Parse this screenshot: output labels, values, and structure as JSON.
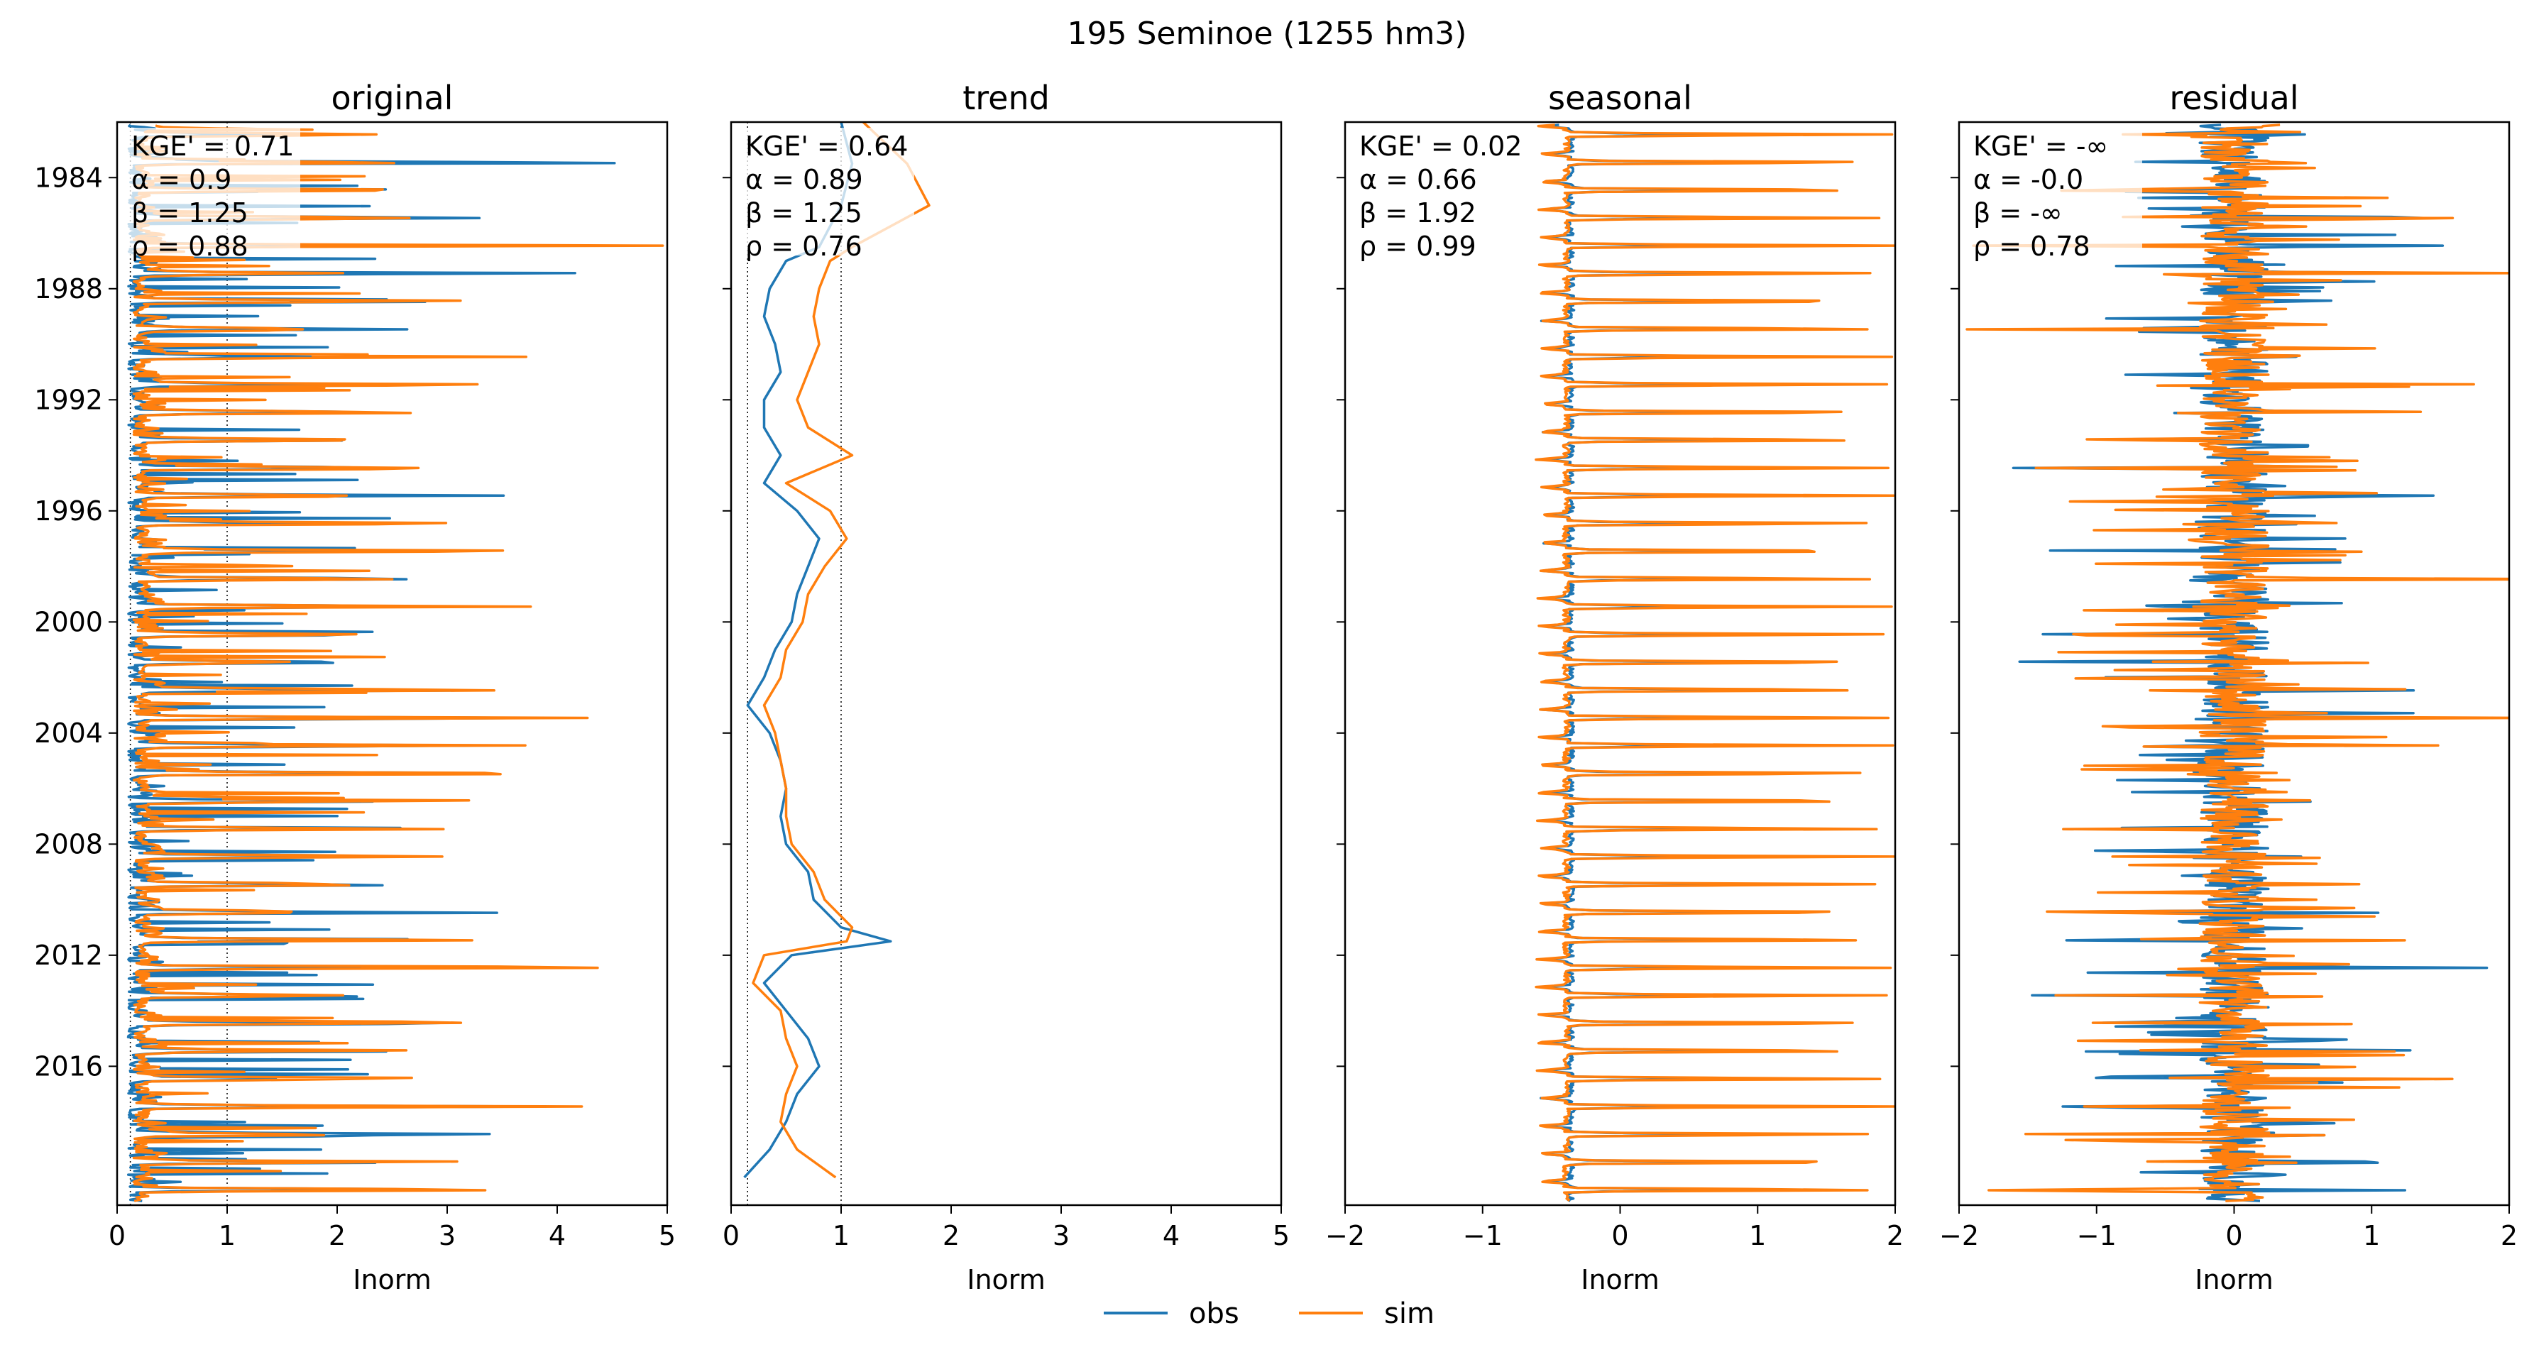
{
  "figure": {
    "suptitle": "195  Seminoe (1255 hm3)",
    "legend": {
      "obs_label": "obs",
      "sim_label": "sim",
      "placement": "bottom-center"
    },
    "colors": {
      "obs": "#1f77b4",
      "sim": "#ff7f0e",
      "axis": "#000000",
      "background": "#ffffff"
    }
  },
  "chart_data": [
    {
      "type": "line",
      "title": "original",
      "xlabel": "Inorm",
      "ylabel": "",
      "orientation": "vertical-time",
      "xlim": [
        0,
        5
      ],
      "xticks": [
        "0",
        "1",
        "2",
        "3",
        "4",
        "5"
      ],
      "ylim": [
        1982,
        2021
      ],
      "yticks": [
        "1984",
        "1988",
        "1992",
        "1996",
        "2000",
        "2004",
        "2008",
        "2012",
        "2016"
      ],
      "reference_lines_x": [
        0.12,
        1.0
      ],
      "metrics": [
        "KGE' = 0.71",
        "α = 0.9",
        "β = 1.25",
        "ρ = 0.88"
      ],
      "series": [
        {
          "name": "obs",
          "pattern": "annual-spikes",
          "base": 0.1,
          "amplitude": 1.8,
          "noise": 0.3
        },
        {
          "name": "sim",
          "pattern": "annual-spikes",
          "base": 0.15,
          "amplitude": 2.1,
          "noise": 0.3
        }
      ]
    },
    {
      "type": "line",
      "title": "trend",
      "xlabel": "Inorm",
      "ylabel": "",
      "orientation": "vertical-time",
      "xlim": [
        0,
        5
      ],
      "xticks": [
        "0",
        "1",
        "2",
        "3",
        "4",
        "5"
      ],
      "ylim": [
        1982,
        2021
      ],
      "yticks": [
        "1984",
        "1988",
        "1992",
        "1996",
        "2000",
        "2004",
        "2008",
        "2012",
        "2016"
      ],
      "reference_lines_x": [
        0.15,
        1.0
      ],
      "metrics": [
        "KGE' = 0.64",
        "α = 0.89",
        "β = 1.25",
        "ρ = 0.76"
      ],
      "series": [
        {
          "name": "obs",
          "y": [
            1982.0,
            1983.5,
            1985.0,
            1986.5,
            1987.0,
            1988.0,
            1989.0,
            1990.0,
            1991.0,
            1992.0,
            1993.0,
            1994.0,
            1995.0,
            1996.0,
            1997.0,
            1998.0,
            1999.0,
            2000.0,
            2001.0,
            2002.0,
            2003.0,
            2004.0,
            2005.0,
            2006.0,
            2007.0,
            2008.0,
            2009.0,
            2010.0,
            2011.0,
            2011.5,
            2012.0,
            2013.0,
            2014.0,
            2015.0,
            2016.0,
            2017.0,
            2018.0,
            2019.0,
            2020.0
          ],
          "x": [
            1.0,
            1.1,
            1.0,
            0.8,
            0.5,
            0.35,
            0.3,
            0.4,
            0.45,
            0.3,
            0.3,
            0.45,
            0.3,
            0.6,
            0.8,
            0.7,
            0.6,
            0.55,
            0.4,
            0.3,
            0.15,
            0.35,
            0.45,
            0.5,
            0.45,
            0.5,
            0.7,
            0.75,
            1.0,
            1.45,
            0.55,
            0.3,
            0.5,
            0.7,
            0.8,
            0.6,
            0.5,
            0.35,
            0.12
          ]
        },
        {
          "name": "sim",
          "y": [
            1982.0,
            1983.5,
            1985.0,
            1986.5,
            1987.0,
            1988.0,
            1989.0,
            1990.0,
            1991.0,
            1992.0,
            1993.0,
            1994.0,
            1995.0,
            1996.0,
            1997.0,
            1998.0,
            1999.0,
            2000.0,
            2001.0,
            2002.0,
            2003.0,
            2004.0,
            2005.0,
            2006.0,
            2007.0,
            2008.0,
            2009.0,
            2010.0,
            2011.0,
            2011.5,
            2012.0,
            2013.0,
            2014.0,
            2015.0,
            2016.0,
            2017.0,
            2018.0,
            2019.0,
            2020.0
          ],
          "x": [
            1.2,
            1.6,
            1.8,
            1.1,
            0.9,
            0.8,
            0.75,
            0.8,
            0.7,
            0.6,
            0.7,
            1.1,
            0.5,
            0.9,
            1.05,
            0.85,
            0.7,
            0.65,
            0.5,
            0.45,
            0.3,
            0.4,
            0.45,
            0.5,
            0.5,
            0.55,
            0.75,
            0.85,
            1.1,
            1.05,
            0.3,
            0.2,
            0.45,
            0.5,
            0.6,
            0.5,
            0.45,
            0.6,
            0.95
          ]
        }
      ]
    },
    {
      "type": "line",
      "title": "seasonal",
      "xlabel": "Inorm",
      "ylabel": "",
      "orientation": "vertical-time",
      "xlim": [
        -2,
        2
      ],
      "xticks": [
        "−2",
        "−1",
        "0",
        "1",
        "2"
      ],
      "ylim": [
        1982,
        2021
      ],
      "yticks": [
        "1984",
        "1988",
        "1992",
        "1996",
        "2000",
        "2004",
        "2008",
        "2012",
        "2016"
      ],
      "reference_lines_x": [],
      "metrics": [
        "KGE' = 0.02",
        "α = 0.66",
        "β = 1.92",
        "ρ = 0.99"
      ],
      "series": [
        {
          "name": "obs",
          "pattern": "seasonal-cycle",
          "min": -0.6,
          "max": 1.2,
          "noise": 0.0
        },
        {
          "name": "sim",
          "pattern": "seasonal-cycle",
          "min": -0.65,
          "max": 2.0,
          "noise": 0.0
        }
      ]
    },
    {
      "type": "line",
      "title": "residual",
      "xlabel": "Inorm",
      "ylabel": "",
      "orientation": "vertical-time",
      "xlim": [
        -2,
        2
      ],
      "xticks": [
        "−2",
        "−1",
        "0",
        "1",
        "2"
      ],
      "ylim": [
        1982,
        2021
      ],
      "yticks": [
        "1984",
        "1988",
        "1992",
        "1996",
        "2000",
        "2004",
        "2008",
        "2012",
        "2016"
      ],
      "reference_lines_x": [],
      "metrics": [
        "KGE' = -∞",
        "α = -0.0",
        "β = -∞",
        "ρ = 0.78"
      ],
      "series": [
        {
          "name": "obs",
          "pattern": "residual-noise",
          "spread": 1.8,
          "noise": 0.25
        },
        {
          "name": "sim",
          "pattern": "residual-noise",
          "spread": 2.0,
          "noise": 0.25
        }
      ]
    }
  ]
}
